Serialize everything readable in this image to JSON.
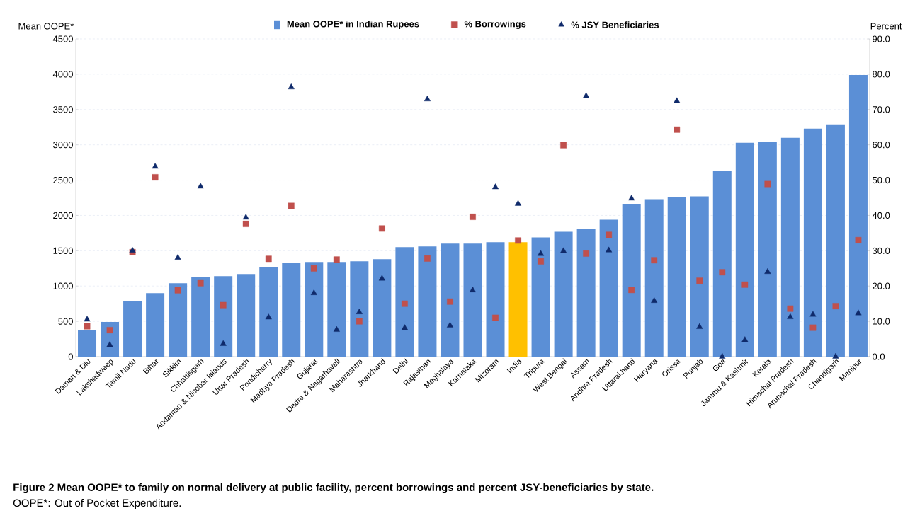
{
  "chart_data": {
    "type": "bar",
    "categories": [
      "Daman & Diu",
      "Lakshadweep",
      "Tamil Nadu",
      "Bihar",
      "Sikkim",
      "Chhattisgarh",
      "Andaman & Nicobar Islands",
      "Uttar Pradesh",
      "Pondicherry",
      "Madhya Pradesh",
      "Gujarat",
      "Dadra & Nagarhaveli",
      "Maharashtra",
      "Jharkhand",
      "Delhi",
      "Rajasthan",
      "Meghalaya",
      "Karnataka",
      "Mizoram",
      "India",
      "Tripura",
      "West Bengal",
      "Assam",
      "Andhra Pradesh",
      "Uttarakhand",
      "Haryana",
      "Orissa",
      "Punjab",
      "Goa",
      "Jammu & Kashmir",
      "Kerala",
      "Himachal Pradesh",
      "Arunachal Pradesh",
      "Chandigarh",
      "Manipur"
    ],
    "ylabel": "Mean OOPE*",
    "y2label": "Percent",
    "ylim": [
      0,
      4500
    ],
    "yticks": [
      0,
      500,
      1000,
      1500,
      2000,
      2500,
      3000,
      3500,
      4000,
      4500
    ],
    "y2lim": [
      0,
      90
    ],
    "y2ticks": [
      {
        "value": 0,
        "label": "0.0"
      },
      {
        "value": 10,
        "label": "10.0"
      },
      {
        "value": 20,
        "label": "20.0"
      },
      {
        "value": 30,
        "label": "30.0"
      },
      {
        "value": 40,
        "label": "40.0"
      },
      {
        "value": 50,
        "label": "50.0"
      },
      {
        "value": 60,
        "label": "60.0"
      },
      {
        "value": 70,
        "label": "70.0"
      },
      {
        "value": 80,
        "label": "80.0"
      },
      {
        "value": 90,
        "label": "90.0"
      }
    ],
    "grid": "y",
    "legend": "top",
    "series": [
      {
        "name": "Mean OOPE* in Indian Rupees",
        "color": "#5b8fd6",
        "colors": [
          "#5b8fd6",
          "#5b8fd6",
          "#5b8fd6",
          "#5b8fd6",
          "#5b8fd6",
          "#5b8fd6",
          "#5b8fd6",
          "#5b8fd6",
          "#5b8fd6",
          "#5b8fd6",
          "#5b8fd6",
          "#5b8fd6",
          "#5b8fd6",
          "#5b8fd6",
          "#5b8fd6",
          "#5b8fd6",
          "#5b8fd6",
          "#5b8fd6",
          "#5b8fd6",
          "#ffc000",
          "#5b8fd6",
          "#5b8fd6",
          "#5b8fd6",
          "#5b8fd6",
          "#5b8fd6",
          "#5b8fd6",
          "#5b8fd6",
          "#5b8fd6",
          "#5b8fd6",
          "#5b8fd6",
          "#5b8fd6",
          "#5b8fd6",
          "#5b8fd6",
          "#5b8fd6",
          "#5b8fd6"
        ],
        "values": [
          380,
          490,
          790,
          900,
          1040,
          1130,
          1140,
          1170,
          1270,
          1330,
          1340,
          1340,
          1350,
          1380,
          1550,
          1560,
          1600,
          1600,
          1620,
          1620,
          1690,
          1770,
          1810,
          1940,
          2160,
          2230,
          2260,
          2270,
          2630,
          3030,
          3040,
          3100,
          3230,
          3290,
          3990
        ]
      },
      {
        "name": "% Borrowings",
        "type": "scatter",
        "marker": "square",
        "axis": "y2",
        "color": "#c0504d",
        "values": [
          8.6,
          7.5,
          29.6,
          50.8,
          18.8,
          20.8,
          14.6,
          37.6,
          27.7,
          42.7,
          25.0,
          27.5,
          10.0,
          36.3,
          15.0,
          27.8,
          15.6,
          39.6,
          11.0,
          32.9,
          27.0,
          59.9,
          29.2,
          34.5,
          18.9,
          27.3,
          64.3,
          21.5,
          23.9,
          20.4,
          48.9,
          13.6,
          8.2,
          14.3,
          33.0
        ]
      },
      {
        "name": "% JSY Beneficiaries",
        "type": "scatter",
        "marker": "triangle",
        "axis": "y2",
        "color": "#0f2a6b",
        "values": [
          10.5,
          3.3,
          30.0,
          53.8,
          28.0,
          48.2,
          3.6,
          39.4,
          11.1,
          76.3,
          18.0,
          7.6,
          12.6,
          22.1,
          8.1,
          72.9,
          8.8,
          18.8,
          48.0,
          43.3,
          29.1,
          29.9,
          73.8,
          30.1,
          44.8,
          15.8,
          72.4,
          8.4,
          0.0,
          4.7,
          24.0,
          11.2,
          11.9,
          0.0,
          12.3
        ]
      }
    ],
    "annotations": [
      "Figure 2 Mean OOPE* to family on normal delivery at public facility, percent borrowings and percent JSY-beneficiaries by state.",
      "OOPE*: Out of Pocket Expenditure."
    ]
  }
}
